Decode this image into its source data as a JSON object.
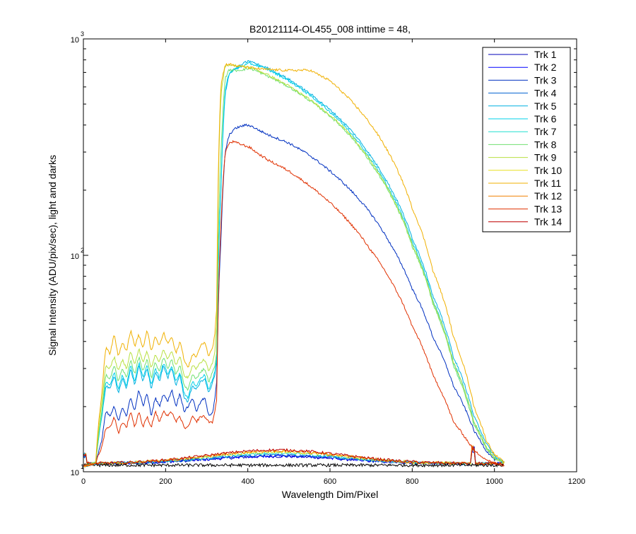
{
  "chart_data": {
    "type": "line",
    "title": "B20121114-OL455_008 inttime = 48,",
    "xlabel": "Wavelength Dim/Pixel",
    "ylabel": "Signal Intensity (ADU/pix/sec), light and darks",
    "xlim": [
      0,
      1200
    ],
    "ylim": [
      10,
      1000
    ],
    "yscale": "log",
    "grid": false,
    "legend_position": "top-right",
    "xticks": [
      "0",
      "200",
      "400",
      "600",
      "800",
      "1000",
      "1200"
    ],
    "yticks": [
      {
        "base": "10",
        "exp": "1"
      },
      {
        "base": "10",
        "exp": "2"
      },
      {
        "base": "10",
        "exp": "3"
      }
    ],
    "series": [
      {
        "name": "Trk 1",
        "color": "#0000b8",
        "level": "dark"
      },
      {
        "name": "Trk 2",
        "color": "#0000ff",
        "level": "dark"
      },
      {
        "name": "Trk 3",
        "color": "#0030c0",
        "level": "low",
        "x": [
          0,
          10,
          30,
          45,
          55,
          65,
          75,
          85,
          95,
          105,
          115,
          125,
          135,
          145,
          155,
          165,
          175,
          185,
          195,
          205,
          215,
          225,
          235,
          245,
          255,
          265,
          275,
          285,
          295,
          305,
          315,
          320,
          325,
          335,
          345,
          355,
          365,
          375,
          385,
          395,
          405,
          415,
          425,
          450,
          500,
          550,
          600,
          650,
          700,
          750,
          800,
          850,
          900,
          950,
          980,
          1000,
          1025
        ],
        "y": [
          10.6,
          10.7,
          11,
          14,
          19,
          18,
          20,
          17,
          20,
          18,
          22,
          19,
          24,
          20,
          23,
          18,
          22,
          20,
          23,
          21,
          24,
          20,
          23,
          19,
          20,
          22,
          19,
          21,
          22,
          18,
          19,
          22,
          27,
          120,
          300,
          360,
          380,
          390,
          395,
          400,
          398,
          390,
          380,
          360,
          330,
          290,
          245,
          200,
          155,
          110,
          70,
          42,
          25,
          15.5,
          12.5,
          11.4,
          11
        ]
      },
      {
        "name": "Trk 4",
        "color": "#0060d0",
        "level": "dark"
      },
      {
        "name": "Trk 5",
        "color": "#00b0e0",
        "level": "mid",
        "x": [
          0,
          10,
          30,
          45,
          55,
          65,
          75,
          85,
          95,
          105,
          115,
          125,
          135,
          145,
          155,
          165,
          175,
          185,
          195,
          205,
          215,
          225,
          235,
          245,
          255,
          265,
          275,
          285,
          295,
          305,
          315,
          320,
          325,
          335,
          345,
          355,
          365,
          375,
          385,
          395,
          405,
          415,
          425,
          450,
          500,
          550,
          600,
          650,
          700,
          750,
          800,
          850,
          900,
          950,
          980,
          1000,
          1025
        ],
        "y": [
          10.6,
          10.7,
          11,
          18,
          25,
          24,
          28,
          23,
          27,
          24,
          30,
          25,
          31,
          26,
          30,
          24,
          29,
          26,
          31,
          27,
          30,
          25,
          28,
          22,
          21,
          25,
          24,
          26,
          27,
          23,
          26,
          28,
          33,
          200,
          560,
          690,
          720,
          740,
          760,
          780,
          790,
          775,
          760,
          730,
          650,
          560,
          470,
          380,
          285,
          200,
          120,
          65,
          34,
          18,
          13.5,
          11.8,
          11
        ]
      },
      {
        "name": "Trk 6",
        "color": "#00d0e8",
        "level": "mid",
        "x": [
          0,
          10,
          30,
          45,
          55,
          65,
          75,
          85,
          95,
          105,
          115,
          125,
          135,
          145,
          155,
          165,
          175,
          185,
          195,
          205,
          215,
          225,
          235,
          245,
          255,
          265,
          275,
          285,
          295,
          305,
          315,
          320,
          325,
          335,
          345,
          355,
          365,
          375,
          385,
          395,
          405,
          415,
          425,
          450,
          500,
          550,
          600,
          650,
          700,
          750,
          800,
          850,
          900,
          950,
          980,
          1000,
          1025
        ],
        "y": [
          10.6,
          10.7,
          11,
          18,
          26,
          25,
          29,
          24,
          28,
          25,
          31,
          26,
          32,
          27,
          31,
          25,
          30,
          27,
          32,
          28,
          31,
          26,
          29,
          23,
          22,
          26,
          25,
          27,
          28,
          24,
          27,
          29,
          34,
          210,
          580,
          700,
          715,
          730,
          745,
          760,
          770,
          760,
          750,
          720,
          640,
          550,
          460,
          370,
          275,
          192,
          115,
          62,
          32,
          17,
          13,
          11.6,
          11
        ]
      },
      {
        "name": "Trk 7",
        "color": "#20e0d0",
        "level": "dark"
      },
      {
        "name": "Trk 8",
        "color": "#70e070",
        "level": "mid",
        "x": [
          0,
          10,
          30,
          45,
          55,
          65,
          75,
          85,
          95,
          105,
          115,
          125,
          135,
          145,
          155,
          165,
          175,
          185,
          195,
          205,
          215,
          225,
          235,
          245,
          255,
          265,
          275,
          285,
          295,
          305,
          315,
          320,
          325,
          335,
          345,
          355,
          365,
          375,
          385,
          395,
          405,
          415,
          425,
          450,
          500,
          550,
          600,
          650,
          700,
          750,
          800,
          850,
          900,
          950,
          980,
          1000,
          1025
        ],
        "y": [
          10.6,
          10.7,
          11,
          19,
          28,
          27,
          31,
          26,
          30,
          27,
          33,
          28,
          34,
          29,
          33,
          27,
          32,
          29,
          34,
          30,
          33,
          28,
          31,
          25,
          24,
          28,
          27,
          29,
          30,
          26,
          29,
          31,
          36,
          300,
          660,
          720,
          715,
          715,
          720,
          725,
          730,
          720,
          705,
          670,
          600,
          520,
          440,
          355,
          265,
          185,
          110,
          60,
          31,
          16.5,
          12.8,
          11.5,
          11
        ]
      },
      {
        "name": "Trk 9",
        "color": "#b8e040",
        "level": "mid",
        "x": [
          0,
          10,
          30,
          45,
          55,
          65,
          75,
          85,
          95,
          105,
          115,
          125,
          135,
          145,
          155,
          165,
          175,
          185,
          195,
          205,
          215,
          225,
          235,
          245,
          255,
          265,
          275,
          285,
          295,
          305,
          315,
          320,
          325,
          335,
          345,
          355,
          365,
          375,
          385,
          395,
          405,
          415,
          425,
          450,
          500,
          550,
          600,
          650,
          700,
          750,
          800,
          850,
          900,
          950,
          980,
          1000,
          1025
        ],
        "y": [
          10.6,
          10.7,
          11,
          21,
          31,
          30,
          34,
          29,
          33,
          30,
          36,
          31,
          37,
          32,
          36,
          30,
          35,
          32,
          37,
          33,
          36,
          31,
          34,
          28,
          27,
          31,
          30,
          32,
          33,
          29,
          32,
          36,
          50,
          560,
          750,
          760,
          755,
          750,
          745,
          745,
          740,
          730,
          715,
          680,
          605,
          525,
          445,
          360,
          270,
          188,
          112,
          61,
          32,
          17,
          13,
          11.6,
          11
        ]
      },
      {
        "name": "Trk 10",
        "color": "#e8e020",
        "level": "dark"
      },
      {
        "name": "Trk 11",
        "color": "#f0b000",
        "level": "high",
        "x": [
          0,
          10,
          30,
          45,
          55,
          65,
          75,
          85,
          95,
          105,
          115,
          125,
          135,
          145,
          155,
          165,
          175,
          185,
          195,
          205,
          215,
          225,
          235,
          245,
          255,
          265,
          275,
          285,
          295,
          305,
          315,
          320,
          325,
          335,
          345,
          355,
          365,
          375,
          385,
          395,
          405,
          415,
          425,
          450,
          500,
          550,
          600,
          650,
          700,
          750,
          800,
          850,
          900,
          950,
          980,
          1000,
          1025
        ],
        "y": [
          10.6,
          10.7,
          11,
          23,
          38,
          35,
          43,
          34,
          40,
          36,
          45,
          38,
          43,
          37,
          45,
          36,
          42,
          38,
          44,
          39,
          42,
          35,
          40,
          33,
          30,
          35,
          34,
          38,
          40,
          34,
          38,
          44,
          60,
          620,
          760,
          765,
          755,
          750,
          745,
          740,
          735,
          732,
          728,
          722,
          715,
          718,
          640,
          520,
          400,
          280,
          165,
          85,
          42,
          20,
          14,
          12,
          11
        ]
      },
      {
        "name": "Trk 12",
        "color": "#f08000",
        "level": "dark"
      },
      {
        "name": "Trk 13",
        "color": "#e03000",
        "level": "low",
        "x": [
          0,
          10,
          30,
          45,
          55,
          65,
          75,
          85,
          95,
          105,
          115,
          125,
          135,
          145,
          155,
          165,
          175,
          185,
          195,
          205,
          215,
          225,
          235,
          245,
          255,
          265,
          275,
          285,
          295,
          305,
          315,
          320,
          325,
          335,
          345,
          355,
          365,
          375,
          385,
          395,
          405,
          415,
          425,
          450,
          500,
          550,
          600,
          650,
          700,
          750,
          800,
          850,
          900,
          950,
          980,
          1000,
          1025
        ],
        "y": [
          10.6,
          10.7,
          11,
          13,
          16,
          16,
          18,
          15,
          17,
          16,
          19,
          16,
          19,
          16,
          18,
          16,
          19,
          17,
          19,
          18,
          19,
          17,
          18,
          16,
          16,
          18,
          17,
          18,
          18,
          17,
          17,
          19,
          22,
          140,
          300,
          330,
          335,
          330,
          325,
          320,
          315,
          305,
          295,
          275,
          245,
          210,
          175,
          140,
          105,
          75,
          47,
          28,
          17,
          12.5,
          11.4,
          10.9,
          10.7
        ]
      },
      {
        "name": "Trk 14",
        "color": "#c00000",
        "level": "dark"
      }
    ]
  }
}
